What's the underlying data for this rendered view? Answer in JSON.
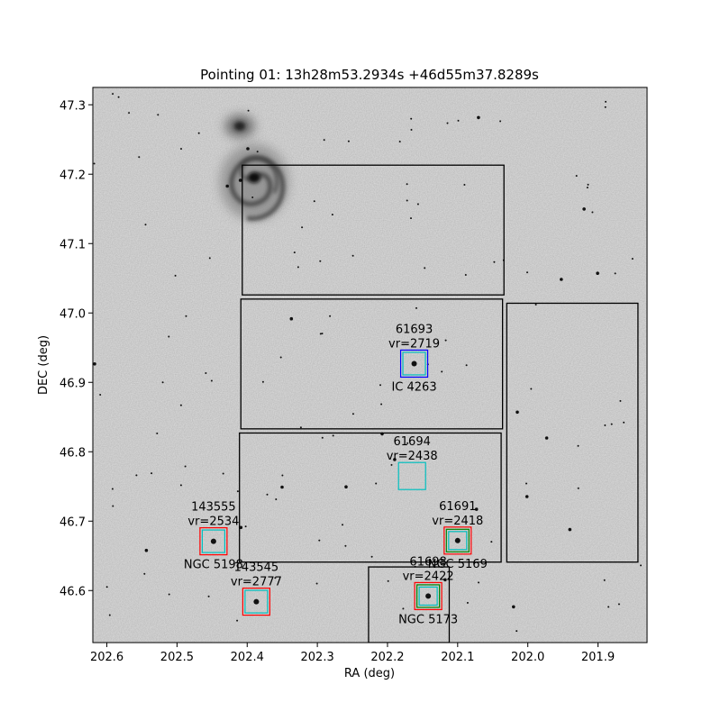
{
  "chart_data": {
    "type": "scatter",
    "title": "Pointing 01: 13h28m53.2934s +46d55m37.8289s",
    "xlabel": "RA (deg)",
    "ylabel": "DEC (deg)",
    "xlim": [
      202.62,
      201.83
    ],
    "ylim": [
      46.525,
      47.325
    ],
    "xticks": [
      "202.6",
      "202.5",
      "202.4",
      "202.3",
      "202.2",
      "202.1",
      "202.0",
      "201.9"
    ],
    "yticks": [
      "46.6",
      "46.7",
      "46.8",
      "46.9",
      "47.0",
      "47.1",
      "47.2",
      "47.3"
    ],
    "background": "grayscale sky image",
    "fields": [
      {
        "ra_min": 202.034,
        "ra_max": 202.407,
        "dec_min": 47.026,
        "dec_max": 47.213
      },
      {
        "ra_min": 202.036,
        "ra_max": 202.409,
        "dec_min": 46.833,
        "dec_max": 47.02
      },
      {
        "ra_min": 201.843,
        "ra_max": 202.03,
        "dec_min": 46.641,
        "dec_max": 47.014
      },
      {
        "ra_min": 202.038,
        "ra_max": 202.411,
        "dec_min": 46.641,
        "dec_max": 46.827
      },
      {
        "ra_min": 202.112,
        "ra_max": 202.227,
        "dec_min": 46.525,
        "dec_max": 46.634
      }
    ],
    "sources": [
      {
        "id": "61693",
        "vr": "vr=2719",
        "name": "IC 4263",
        "ra": 202.162,
        "dec": 46.927,
        "boxes": [
          "#0000ff",
          "#00bfbf"
        ]
      },
      {
        "id": "61694",
        "vr": "vr=2438",
        "name": "",
        "ra": 202.165,
        "dec": 46.765,
        "boxes": [
          "#00bfbf"
        ]
      },
      {
        "id": "61691",
        "vr": "vr=2418",
        "name": "NGC 5169",
        "ra": 202.1,
        "dec": 46.672,
        "boxes": [
          "#ff0000",
          "#008000",
          "#00bfbf"
        ]
      },
      {
        "id": "143555",
        "vr": "vr=2534",
        "name": "NGC 5198",
        "ra": 202.448,
        "dec": 46.671,
        "boxes": [
          "#ff0000",
          "#00bfbf"
        ]
      },
      {
        "id": "143545",
        "vr": "vr=2777",
        "name": "",
        "ra": 202.387,
        "dec": 46.584,
        "boxes": [
          "#ff0000",
          "#00bfbf"
        ]
      },
      {
        "id": "61698",
        "vr": "vr=2422",
        "name": "NGC 5173",
        "ra": 202.142,
        "dec": 46.592,
        "boxes": [
          "#ff0000",
          "#008000",
          "#00bfbf"
        ]
      }
    ]
  }
}
